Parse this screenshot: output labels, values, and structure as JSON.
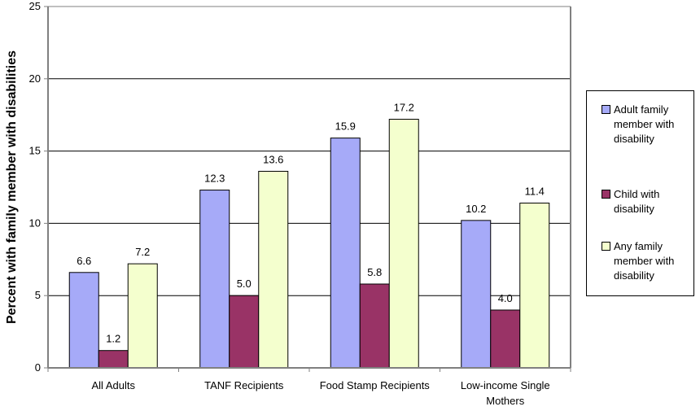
{
  "chart_data": {
    "type": "bar",
    "title": "",
    "ylabel": "Percent with family member with disabilities",
    "xlabel": "",
    "ylim": [
      0,
      25
    ],
    "yticks": [
      0,
      5,
      10,
      15,
      20,
      25
    ],
    "grid": true,
    "legend_position": "right",
    "categories": [
      "All Adults",
      "TANF Recipients",
      "Food Stamp Recipients",
      "Low-income Single Mothers"
    ],
    "series": [
      {
        "name": "Adult family member with disability",
        "color": "#a6aaf8",
        "values": [
          6.6,
          12.3,
          15.9,
          10.2
        ],
        "labels": [
          "6.6",
          "12.3",
          "15.9",
          "10.2"
        ]
      },
      {
        "name": "Child with disability",
        "color": "#993366",
        "values": [
          1.2,
          5.0,
          5.8,
          4.0
        ],
        "labels": [
          "1.2",
          "5.0",
          "5.8",
          "4.0"
        ]
      },
      {
        "name": "Any family member with disability",
        "color": "#f4ffce",
        "values": [
          7.2,
          13.6,
          17.2,
          11.4
        ],
        "labels": [
          "7.2",
          "13.6",
          "17.2",
          "11.4"
        ]
      }
    ]
  }
}
